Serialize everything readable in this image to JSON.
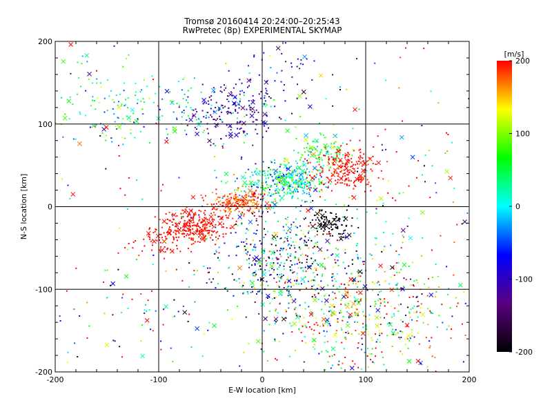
{
  "chart_data": {
    "type": "scatter",
    "title_line1": "Tromsø 20160414 20:24:00–20:25:43",
    "title_line2": "RwPretec (8p) EXPERIMENTAL SKYMAP",
    "xlabel": "E-W location [km]",
    "ylabel": "N-S location [km]",
    "xlim": [
      -200,
      200
    ],
    "ylim": [
      -200,
      200
    ],
    "xticks": [
      -200,
      -100,
      0,
      100,
      200
    ],
    "yticks": [
      -200,
      -100,
      0,
      100,
      200
    ],
    "grid": true,
    "colorbar": {
      "label": "[m/s]",
      "range": [
        -200,
        200
      ],
      "ticks": [
        -200,
        -100,
        0,
        100,
        200
      ],
      "colormap": [
        "#000000",
        "#5a0080",
        "#0000ff",
        "#00ffff",
        "#00ff00",
        "#ffff00",
        "#ff0000"
      ]
    },
    "markers": [
      "dot",
      "x"
    ],
    "clusters": [
      {
        "region": "north-west band",
        "cx": -100,
        "cy": 115,
        "sx": 55,
        "sy": 20,
        "v_mean": 20,
        "v_sd": 60,
        "n": 150
      },
      {
        "region": "north-west scatter",
        "cx": -150,
        "cy": 140,
        "sx": 30,
        "sy": 30,
        "v_mean": 40,
        "v_sd": 60,
        "n": 50
      },
      {
        "region": "north blue patch",
        "cx": -30,
        "cy": 110,
        "sx": 20,
        "sy": 18,
        "v_mean": -120,
        "v_sd": 20,
        "n": 140
      },
      {
        "region": "north blue sparse",
        "cx": 5,
        "cy": 150,
        "sx": 30,
        "sy": 30,
        "v_mean": -100,
        "v_sd": 40,
        "n": 70
      },
      {
        "region": "arc red south-west",
        "cx": -65,
        "cy": -25,
        "sx": 15,
        "sy": 10,
        "v_mean": 200,
        "v_sd": 10,
        "n": 260
      },
      {
        "region": "arc red lower",
        "cx": -100,
        "cy": -45,
        "sx": 15,
        "sy": 10,
        "v_mean": 200,
        "v_sd": 10,
        "n": 60
      },
      {
        "region": "arc center red",
        "cx": -20,
        "cy": 5,
        "sx": 15,
        "sy": 8,
        "v_mean": 185,
        "v_sd": 20,
        "n": 200
      },
      {
        "region": "arc center green",
        "cx": 20,
        "cy": 30,
        "sx": 20,
        "sy": 12,
        "v_mean": 20,
        "v_sd": 50,
        "n": 330
      },
      {
        "region": "arc north-east green",
        "cx": 55,
        "cy": 65,
        "sx": 15,
        "sy": 12,
        "v_mean": 60,
        "v_sd": 40,
        "n": 120
      },
      {
        "region": "north-east red",
        "cx": 80,
        "cy": 45,
        "sx": 15,
        "sy": 15,
        "v_mean": 200,
        "v_sd": 10,
        "n": 200
      },
      {
        "region": "south-center mixed",
        "cx": 25,
        "cy": -65,
        "sx": 40,
        "sy": 35,
        "v_mean": -20,
        "v_sd": 120,
        "n": 500
      },
      {
        "region": "black patch",
        "cx": 65,
        "cy": -20,
        "sx": 10,
        "sy": 8,
        "v_mean": -200,
        "v_sd": 10,
        "n": 100
      },
      {
        "region": "south-east",
        "cx": 95,
        "cy": -130,
        "sx": 50,
        "sy": 40,
        "v_mean": 100,
        "v_sd": 110,
        "n": 500
      },
      {
        "region": "south-west sparse",
        "cx": -120,
        "cy": -120,
        "sx": 40,
        "sy": 40,
        "v_mean": 0,
        "v_sd": 150,
        "n": 50
      },
      {
        "region": "east sparse",
        "cx": 140,
        "cy": 20,
        "sx": 40,
        "sy": 50,
        "v_mean": 100,
        "v_sd": 150,
        "n": 60
      },
      {
        "region": "scattered background",
        "cx": 0,
        "cy": 0,
        "sx": 110,
        "sy": 110,
        "v_mean": 50,
        "v_sd": 150,
        "n": 200
      }
    ]
  }
}
